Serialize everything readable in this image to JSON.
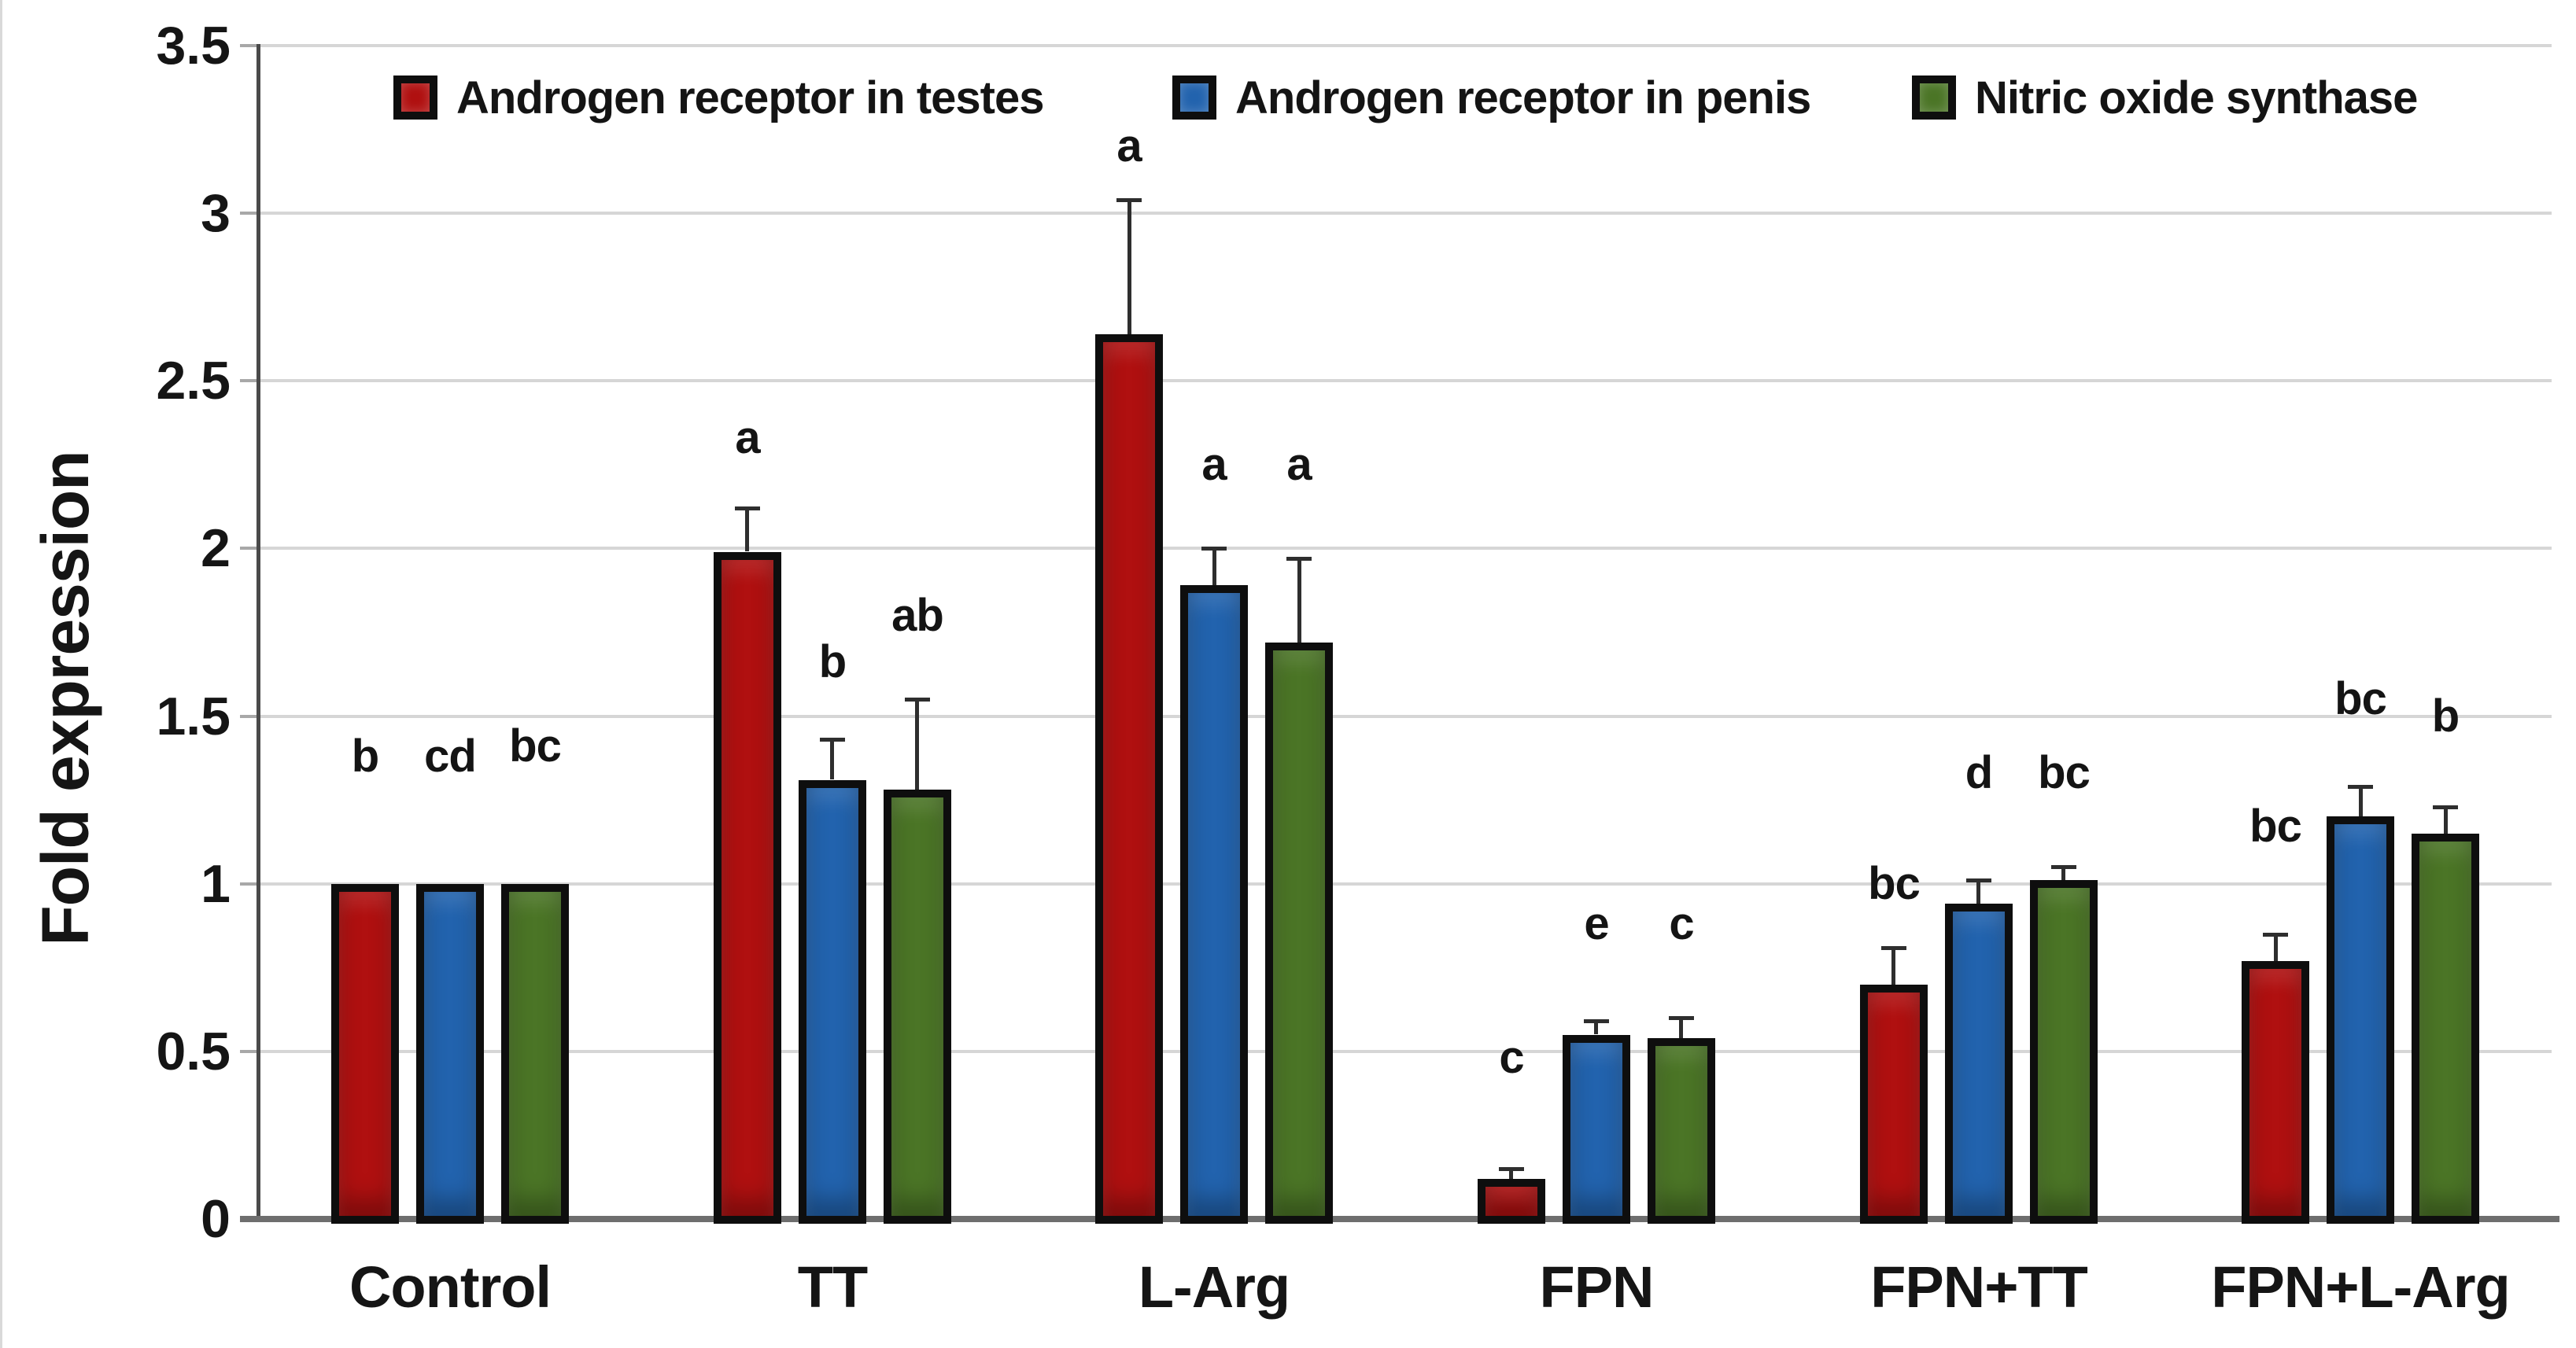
{
  "chart_data": {
    "type": "bar",
    "title": "",
    "xlabel": "",
    "ylabel": "Fold expression",
    "ylim": [
      0,
      3.5
    ],
    "ytick_interval": 0.5,
    "y_tick_labels": [
      "0",
      "0.5",
      "1",
      "1.5",
      "2",
      "2.5",
      "3",
      "3.5"
    ],
    "grid": "horizontal",
    "legend_position": "top",
    "error_bars": "upward whiskers with caps",
    "annotations": "significance letters above bars",
    "categories": [
      "Control",
      "TT",
      "L-Arg",
      "FPN",
      "FPN+TT",
      "FPN+L-Arg"
    ],
    "series": [
      {
        "name": "Androgen receptor in testes",
        "color": "#B01010",
        "values": [
          1.0,
          1.99,
          2.64,
          0.12,
          0.7,
          0.77
        ],
        "errors": [
          0,
          0.13,
          0.4,
          0.03,
          0.11,
          0.08
        ],
        "sig_letters": [
          "b",
          "a",
          "a",
          "c",
          "bc",
          "bc"
        ],
        "letter_y": [
          1.38,
          2.33,
          3.2,
          0.48,
          1.0,
          1.17
        ]
      },
      {
        "name": "Androgen receptor in penis",
        "color": "#2263AE",
        "values": [
          1.0,
          1.31,
          1.89,
          0.55,
          0.94,
          1.2
        ],
        "errors": [
          0,
          0.12,
          0.11,
          0.04,
          0.07,
          0.09
        ],
        "sig_letters": [
          "cd",
          "b",
          "a",
          "e",
          "d",
          "bc"
        ],
        "letter_y": [
          1.38,
          1.66,
          2.25,
          0.88,
          1.33,
          1.55
        ]
      },
      {
        "name": "Nitric oxide synthase",
        "color": "#4B7526",
        "values": [
          1.0,
          1.28,
          1.72,
          0.54,
          1.01,
          1.15
        ],
        "errors": [
          0,
          0.27,
          0.25,
          0.06,
          0.04,
          0.08
        ],
        "sig_letters": [
          "bc",
          "ab",
          "a",
          "c",
          "bc",
          "b"
        ],
        "letter_y": [
          1.41,
          1.8,
          2.25,
          0.88,
          1.33,
          1.5
        ]
      }
    ],
    "styles": {
      "bar_border_color": "#0e0e0e",
      "gridline_color": "#d6d6d6",
      "axis_color": "#4a4a4a",
      "baseline_color": "#6e6e6e",
      "error_bar_color": "#2e2e2e",
      "text_color": "#151515",
      "background_color": "#ffffff"
    }
  }
}
